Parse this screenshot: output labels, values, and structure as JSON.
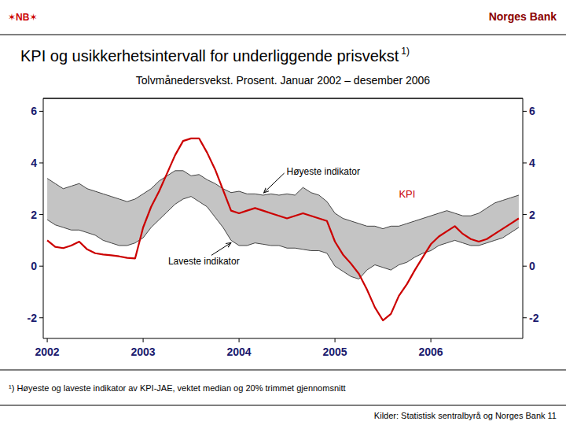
{
  "chart_data": {
    "type": "line",
    "logo": "✶NB✶",
    "publisher": "Norges Bank",
    "title": "KPI og usikkerhetsintervall for underliggende prisvekst",
    "title_note": "1)",
    "subtitle": "Tolvmånedersvekst. Prosent. Januar 2002 – desember 2006",
    "footnote": "¹) Høyeste og laveste indikator av KPI-JAE, vektet median og 20% trimmet gjennomsnitt",
    "source": "Kilder: Statistisk sentralbyrå og Norges Bank  11",
    "categories": [
      "2002",
      null,
      null,
      null,
      null,
      null,
      null,
      null,
      null,
      null,
      null,
      null,
      "2003",
      null,
      null,
      null,
      null,
      null,
      null,
      null,
      null,
      null,
      null,
      null,
      "2004",
      null,
      null,
      null,
      null,
      null,
      null,
      null,
      null,
      null,
      null,
      null,
      "2005",
      null,
      null,
      null,
      null,
      null,
      null,
      null,
      null,
      null,
      null,
      null,
      "2006",
      null,
      null,
      null,
      null,
      null,
      null,
      null,
      null,
      null,
      null,
      null
    ],
    "series": [
      {
        "name": "KPI",
        "color": "#cc0000",
        "values": [
          1.0,
          0.75,
          0.7,
          0.8,
          0.95,
          0.65,
          0.5,
          0.45,
          0.42,
          0.38,
          0.32,
          0.3,
          1.5,
          2.3,
          2.9,
          3.6,
          4.3,
          4.85,
          4.95,
          4.95,
          4.4,
          3.75,
          2.95,
          2.15,
          2.05,
          2.15,
          2.25,
          2.15,
          2.05,
          1.95,
          1.85,
          1.95,
          2.05,
          1.95,
          1.85,
          1.75,
          0.95,
          0.45,
          0.1,
          -0.3,
          -0.9,
          -1.6,
          -2.1,
          -1.85,
          -1.15,
          -0.7,
          -0.15,
          0.35,
          0.85,
          1.15,
          1.35,
          1.55,
          1.25,
          1.05,
          0.95,
          1.05,
          1.25,
          1.45,
          1.65,
          1.85
        ]
      },
      {
        "name": "Høyeste indikator",
        "color": "#444444",
        "values": [
          3.4,
          3.2,
          3.0,
          3.1,
          3.2,
          3.0,
          2.9,
          2.8,
          2.7,
          2.6,
          2.5,
          2.6,
          2.8,
          3.0,
          3.3,
          3.5,
          3.7,
          3.7,
          3.5,
          3.55,
          3.35,
          3.2,
          3.0,
          2.85,
          2.9,
          2.8,
          2.8,
          2.75,
          2.8,
          2.75,
          2.8,
          2.75,
          3.05,
          2.85,
          2.75,
          2.5,
          2.05,
          1.85,
          1.75,
          1.65,
          1.55,
          1.55,
          1.45,
          1.55,
          1.55,
          1.65,
          1.75,
          1.85,
          1.95,
          2.05,
          2.15,
          2.05,
          1.95,
          1.95,
          2.05,
          2.25,
          2.45,
          2.55,
          2.65,
          2.75
        ]
      },
      {
        "name": "Laveste indikator",
        "color": "#444444",
        "values": [
          1.8,
          1.6,
          1.5,
          1.4,
          1.4,
          1.3,
          1.2,
          1.0,
          0.9,
          0.8,
          0.8,
          0.9,
          1.1,
          1.5,
          1.8,
          2.1,
          2.4,
          2.6,
          2.7,
          2.5,
          2.3,
          1.9,
          1.5,
          1.0,
          0.8,
          0.8,
          0.9,
          0.85,
          0.8,
          0.8,
          0.7,
          0.7,
          0.65,
          0.6,
          0.6,
          0.5,
          0.0,
          -0.2,
          -0.4,
          -0.5,
          -0.15,
          0.05,
          -0.05,
          -0.15,
          0.05,
          0.15,
          0.35,
          0.5,
          0.6,
          0.8,
          0.9,
          1.0,
          0.9,
          0.8,
          0.8,
          0.9,
          1.0,
          1.1,
          1.3,
          1.5
        ]
      }
    ],
    "ylim": [
      -2.8,
      6.5
    ],
    "yticks": [
      -2,
      0,
      2,
      4,
      6
    ],
    "grid": false
  }
}
